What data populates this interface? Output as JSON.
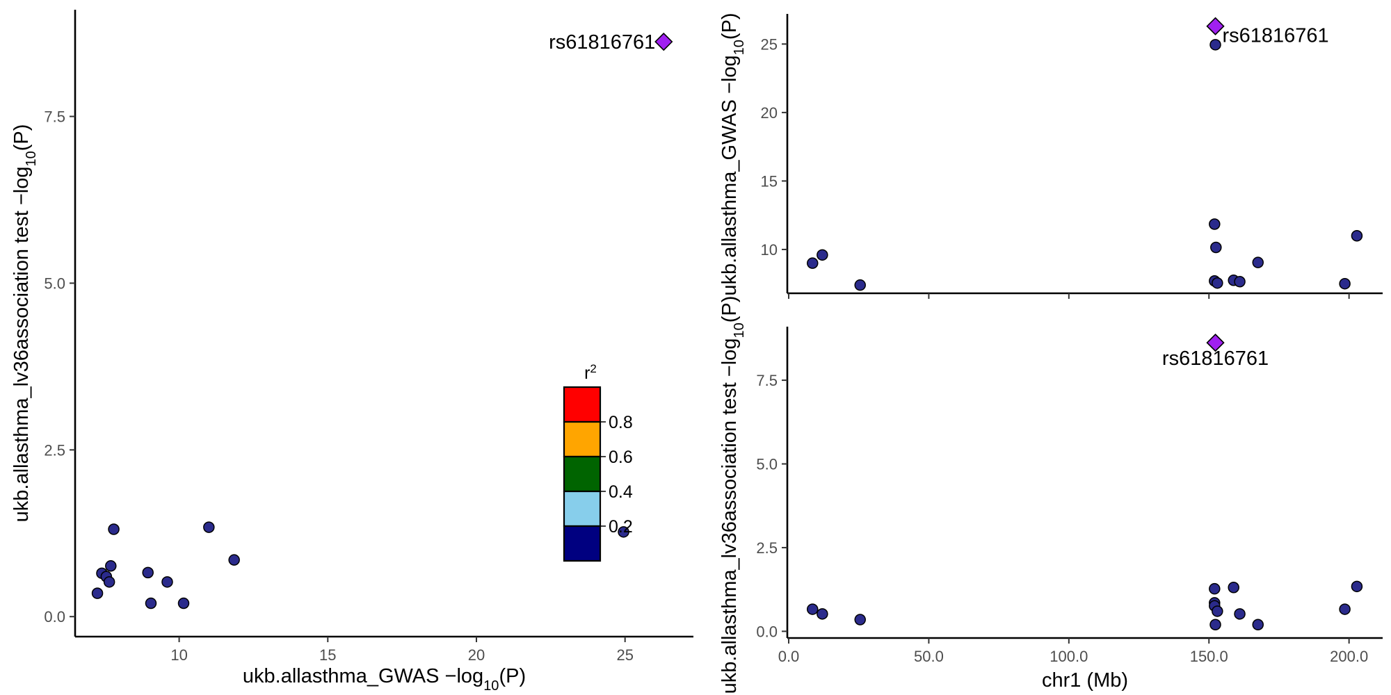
{
  "chart_data": [
    {
      "type": "scatter",
      "panel": "left",
      "xlabel": "ukb.allasthma_GWAS −log",
      "xlabel_sub": "10",
      "xlabel_tail": "(P)",
      "ylabel": "ukb.allasthma_lv36association test −log",
      "ylabel_sub": "10",
      "ylabel_tail": "(P)",
      "xlim": [
        6.5,
        27.3
      ],
      "ylim": [
        -0.3,
        9.1
      ],
      "xticks": [
        10,
        15,
        20,
        25
      ],
      "xtick_labels": [
        "10",
        "15",
        "20",
        "25"
      ],
      "yticks": [
        0.0,
        2.5,
        5.0,
        7.5
      ],
      "ytick_labels": [
        "0.0",
        "2.5",
        "5.0",
        "7.5"
      ],
      "points": [
        {
          "x": 7.25,
          "y": 0.35
        },
        {
          "x": 7.4,
          "y": 0.65
        },
        {
          "x": 7.55,
          "y": 0.6
        },
        {
          "x": 7.65,
          "y": 0.52
        },
        {
          "x": 7.7,
          "y": 0.76
        },
        {
          "x": 7.8,
          "y": 1.31
        },
        {
          "x": 8.95,
          "y": 0.66
        },
        {
          "x": 9.05,
          "y": 0.2
        },
        {
          "x": 9.6,
          "y": 0.52
        },
        {
          "x": 10.15,
          "y": 0.2
        },
        {
          "x": 11.0,
          "y": 1.34
        },
        {
          "x": 11.85,
          "y": 0.85
        },
        {
          "x": 24.95,
          "y": 1.27
        }
      ],
      "lead": {
        "x": 26.3,
        "y": 8.62,
        "label": "rs61816761"
      },
      "point_color": "#2b2b8c",
      "lead_color": "#a020f0",
      "legend": {
        "title": "r",
        "title_sup": "2",
        "placement": "inside-right",
        "bins": [
          {
            "color": "#ff0000"
          },
          {
            "color": "#ffa500"
          },
          {
            "color": "#006400"
          },
          {
            "color": "#87ceeb"
          },
          {
            "color": "#000080"
          }
        ],
        "labels": [
          "0.8",
          "0.6",
          "0.4",
          "0.2"
        ]
      }
    },
    {
      "type": "scatter",
      "panel": "top-right",
      "ylabel": "ukb.allasthma_GWAS −log",
      "ylabel_sub": "10",
      "ylabel_tail": "(P)",
      "xlim": [
        -0.5,
        212
      ],
      "ylim": [
        6.8,
        27.2
      ],
      "yticks": [
        10,
        15,
        20,
        25
      ],
      "ytick_labels": [
        "10",
        "15",
        "20",
        "25"
      ],
      "xticks": [
        0,
        50,
        100,
        150,
        200
      ],
      "points": [
        {
          "x": 8.5,
          "y": 9.0
        },
        {
          "x": 12.0,
          "y": 9.6
        },
        {
          "x": 25.5,
          "y": 7.4
        },
        {
          "x": 152.0,
          "y": 11.85
        },
        {
          "x": 152.0,
          "y": 7.7
        },
        {
          "x": 152.3,
          "y": 24.95
        },
        {
          "x": 152.5,
          "y": 10.15
        },
        {
          "x": 153.0,
          "y": 7.55
        },
        {
          "x": 158.8,
          "y": 7.75
        },
        {
          "x": 161.0,
          "y": 7.65
        },
        {
          "x": 167.5,
          "y": 9.05
        },
        {
          "x": 198.5,
          "y": 7.5
        },
        {
          "x": 202.8,
          "y": 11.0
        }
      ],
      "lead": {
        "x": 152.3,
        "y": 26.3,
        "label": "rs61816761"
      }
    },
    {
      "type": "scatter",
      "panel": "bottom-right",
      "xlabel": "chr1 (Mb)",
      "ylabel": "ukb.allasthma_lv36association test −log",
      "ylabel_sub": "10",
      "ylabel_tail": "(P)",
      "xlim": [
        -0.5,
        212
      ],
      "ylim": [
        -0.2,
        9.1
      ],
      "xticks": [
        0,
        50,
        100,
        150,
        200
      ],
      "xtick_labels": [
        "0.0",
        "50.0",
        "100.0",
        "150.0",
        "200.0"
      ],
      "yticks": [
        0.0,
        2.5,
        5.0,
        7.5
      ],
      "ytick_labels": [
        "0.0",
        "2.5",
        "5.0",
        "7.5"
      ],
      "points": [
        {
          "x": 8.5,
          "y": 0.66
        },
        {
          "x": 12.0,
          "y": 0.52
        },
        {
          "x": 25.5,
          "y": 0.35
        },
        {
          "x": 152.0,
          "y": 1.27
        },
        {
          "x": 152.0,
          "y": 0.85
        },
        {
          "x": 152.0,
          "y": 0.76
        },
        {
          "x": 152.3,
          "y": 0.2
        },
        {
          "x": 153.0,
          "y": 0.6
        },
        {
          "x": 158.8,
          "y": 1.31
        },
        {
          "x": 161.0,
          "y": 0.52
        },
        {
          "x": 167.5,
          "y": 0.2
        },
        {
          "x": 198.5,
          "y": 0.66
        },
        {
          "x": 202.8,
          "y": 1.34
        }
      ],
      "lead": {
        "x": 152.3,
        "y": 8.62,
        "label": "rs61816761"
      }
    }
  ]
}
